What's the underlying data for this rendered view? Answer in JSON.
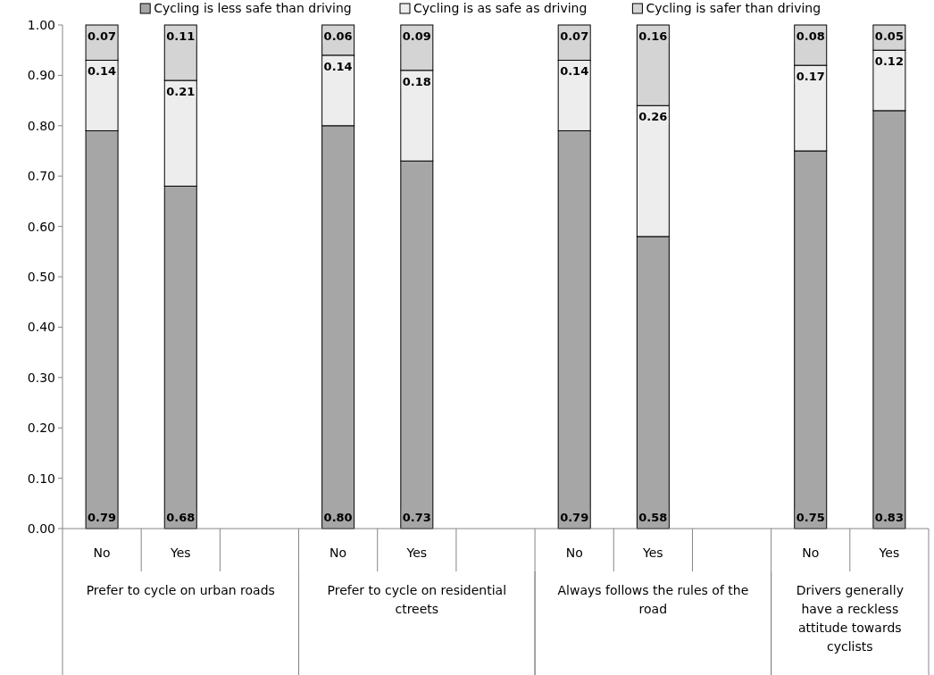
{
  "chart_data": {
    "type": "bar",
    "stacked": true,
    "categories": [
      "No",
      "Yes",
      null,
      "No",
      "Yes",
      null,
      "No",
      "Yes",
      null,
      "No",
      "Yes"
    ],
    "annotations": [
      "Prefer to cycle on urban roads",
      "Prefer to cycle on residential ctreets",
      "Always follows the rules of the road",
      "Drivers generally have a reckless attitude towards cyclists"
    ],
    "series": [
      {
        "name": "Cycling is less safe than driving",
        "color": "#a6a6a6",
        "values": [
          0.79,
          0.68,
          null,
          0.8,
          0.73,
          null,
          0.79,
          0.58,
          null,
          0.75,
          0.83
        ],
        "value_labels": [
          "0.79",
          "0.68",
          null,
          "0.80",
          "0.73",
          null,
          "0.79",
          "0.58",
          null,
          "0.75",
          "0.83"
        ]
      },
      {
        "name": "Cycling is as safe as driving",
        "color": "#ededed",
        "values": [
          0.14,
          0.21,
          null,
          0.14,
          0.18,
          null,
          0.14,
          0.26,
          null,
          0.17,
          0.12
        ],
        "value_labels": [
          "0.14",
          "0.21",
          null,
          "0.14",
          "0.18",
          null,
          "0.14",
          "0.26",
          null,
          "0.17",
          "0.12"
        ]
      },
      {
        "name": "Cycling is safer than driving",
        "color": "#d4d4d4",
        "values": [
          0.07,
          0.11,
          null,
          0.06,
          0.09,
          null,
          0.07,
          0.16,
          null,
          0.08,
          0.05
        ],
        "value_labels": [
          "0.07",
          "0.11",
          null,
          "0.06",
          "0.09",
          null,
          "0.07",
          "0.16",
          null,
          "0.08",
          "0.05"
        ]
      }
    ],
    "ylim": [
      0,
      1
    ],
    "yticks": [
      {
        "value": 0,
        "label": "0.00"
      },
      {
        "value": 0.1,
        "label": "0.10"
      },
      {
        "value": 0.2,
        "label": "0.20"
      },
      {
        "value": 0.3,
        "label": "0.30"
      },
      {
        "value": 0.4,
        "label": "0.40"
      },
      {
        "value": 0.5,
        "label": "0.50"
      },
      {
        "value": 0.6,
        "label": "0.60"
      },
      {
        "value": 0.7,
        "label": "0.70"
      },
      {
        "value": 0.8,
        "label": "0.80"
      },
      {
        "value": 0.9,
        "label": "0.90"
      },
      {
        "value": 1,
        "label": "1.00"
      }
    ],
    "grid": false,
    "legend": "top"
  }
}
